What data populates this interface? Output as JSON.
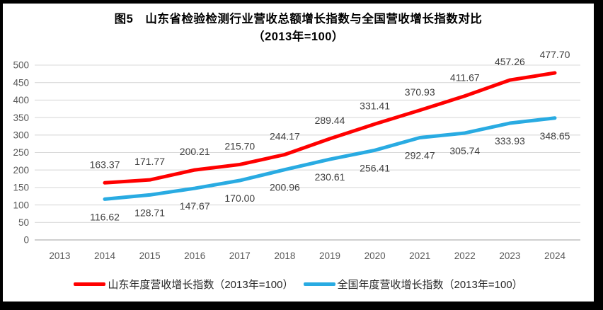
{
  "title": {
    "line1": "图5　山东省检验检测行业营收总额增长指数与全国营收增长指数对比",
    "line2": "（2013年=100）"
  },
  "chart_data": {
    "type": "line",
    "categories": [
      "2013",
      "2014",
      "2015",
      "2016",
      "2017",
      "2018",
      "2019",
      "2020",
      "2021",
      "2022",
      "2023",
      "2024"
    ],
    "series": [
      {
        "name": "山东年度营收增长指数（2013年=100）",
        "color": "#FF0000",
        "first_category": "2014",
        "label_position": "above",
        "values": [
          163.37,
          171.77,
          200.21,
          215.7,
          244.17,
          289.44,
          331.41,
          370.93,
          411.67,
          457.26,
          477.7
        ]
      },
      {
        "name": "全国年度营收增长指数（2013年=100）",
        "color": "#29ABE2",
        "first_category": "2014",
        "label_position": "below",
        "values": [
          116.62,
          128.71,
          147.67,
          170.0,
          200.96,
          230.61,
          256.41,
          292.47,
          305.74,
          333.93,
          348.65
        ]
      }
    ],
    "ylim": [
      0,
      500
    ],
    "ytick_step": 50,
    "grid": true,
    "legend_position": "bottom",
    "grid_color": "#D9D9D9",
    "axis_line_color": "#BFBFBF",
    "tick_label_color": "#595959",
    "data_label_color": "#404040",
    "data_label_decimals": 2
  }
}
